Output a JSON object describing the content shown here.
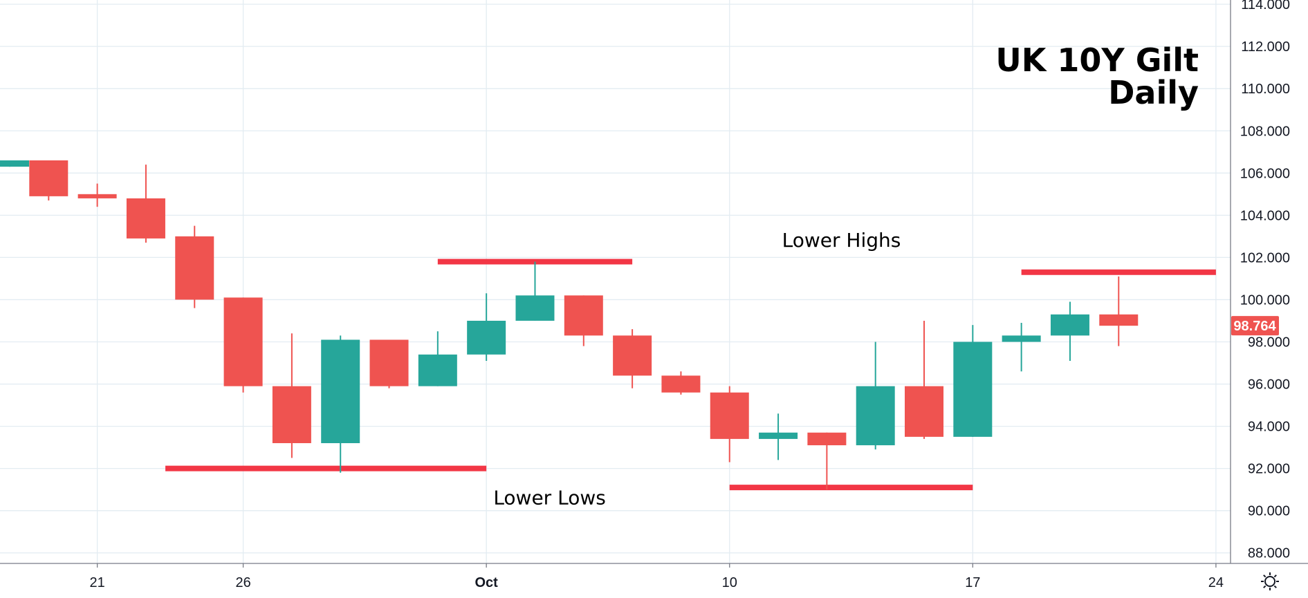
{
  "chart_data": {
    "type": "candlestick",
    "title_line1": "UK 10Y Gilt",
    "title_line2": "Daily",
    "x_ticks": [
      {
        "label": "21",
        "index": 1.8,
        "bold": false
      },
      {
        "label": "26",
        "index": 4.8,
        "bold": false
      },
      {
        "label": "Oct",
        "index": 9.8,
        "bold": true
      },
      {
        "label": "10",
        "index": 14.8,
        "bold": false
      },
      {
        "label": "17",
        "index": 19.8,
        "bold": false
      },
      {
        "label": "24",
        "index": 24.8,
        "bold": false
      }
    ],
    "y_ticks": [
      "88.000",
      "90.000",
      "92.000",
      "94.000",
      "96.000",
      "98.000",
      "100.000",
      "102.000",
      "104.000",
      "106.000",
      "108.000",
      "110.000",
      "112.000",
      "114.000"
    ],
    "ylim": [
      87.5,
      114.2
    ],
    "xlim": [
      -0.2,
      25.1
    ],
    "up_color": "#26a69a",
    "down_color": "#ef5350",
    "candles": [
      {
        "i": 0,
        "o": 106.3,
        "h": 106.6,
        "l": 106.3,
        "c": 106.6
      },
      {
        "i": 0.8,
        "o": 106.6,
        "h": 106.6,
        "l": 104.7,
        "c": 104.9
      },
      {
        "i": 1.8,
        "o": 105.0,
        "h": 105.5,
        "l": 104.4,
        "c": 104.8
      },
      {
        "i": 2.8,
        "o": 104.8,
        "h": 106.4,
        "l": 102.7,
        "c": 102.9
      },
      {
        "i": 3.8,
        "o": 103.0,
        "h": 103.5,
        "l": 99.6,
        "c": 100.0
      },
      {
        "i": 4.8,
        "o": 100.1,
        "h": 100.1,
        "l": 95.6,
        "c": 95.9
      },
      {
        "i": 5.8,
        "o": 95.9,
        "h": 98.4,
        "l": 92.5,
        "c": 93.2
      },
      {
        "i": 6.8,
        "o": 93.2,
        "h": 98.3,
        "l": 91.8,
        "c": 98.1
      },
      {
        "i": 7.8,
        "o": 98.1,
        "h": 98.1,
        "l": 95.8,
        "c": 95.9
      },
      {
        "i": 8.8,
        "o": 95.9,
        "h": 98.5,
        "l": 95.9,
        "c": 97.4
      },
      {
        "i": 9.8,
        "o": 97.4,
        "h": 100.3,
        "l": 97.1,
        "c": 99.0
      },
      {
        "i": 10.8,
        "o": 99.0,
        "h": 101.8,
        "l": 99.0,
        "c": 100.2
      },
      {
        "i": 11.8,
        "o": 100.2,
        "h": 100.2,
        "l": 97.8,
        "c": 98.3
      },
      {
        "i": 12.8,
        "o": 98.3,
        "h": 98.6,
        "l": 95.8,
        "c": 96.4
      },
      {
        "i": 13.8,
        "o": 96.4,
        "h": 96.6,
        "l": 95.5,
        "c": 95.6
      },
      {
        "i": 14.8,
        "o": 95.6,
        "h": 95.9,
        "l": 92.3,
        "c": 93.4
      },
      {
        "i": 15.8,
        "o": 93.4,
        "h": 94.6,
        "l": 92.4,
        "c": 93.7
      },
      {
        "i": 16.8,
        "o": 93.7,
        "h": 93.7,
        "l": 91.0,
        "c": 93.1
      },
      {
        "i": 17.8,
        "o": 93.1,
        "h": 98.0,
        "l": 92.9,
        "c": 95.9
      },
      {
        "i": 18.8,
        "o": 95.9,
        "h": 99.0,
        "l": 93.4,
        "c": 93.5
      },
      {
        "i": 19.8,
        "o": 93.5,
        "h": 98.8,
        "l": 93.5,
        "c": 98.0
      },
      {
        "i": 20.8,
        "o": 98.0,
        "h": 98.9,
        "l": 96.6,
        "c": 98.3
      },
      {
        "i": 21.8,
        "o": 98.3,
        "h": 99.9,
        "l": 97.1,
        "c": 99.3
      },
      {
        "i": 22.8,
        "o": 99.3,
        "h": 101.1,
        "l": 97.8,
        "c": 98.764
      }
    ],
    "horizontal_lines": [
      {
        "value": 92.0,
        "from": 3.2,
        "to": 9.8
      },
      {
        "value": 101.8,
        "from": 8.8,
        "to": 12.8
      },
      {
        "value": 91.1,
        "from": 14.8,
        "to": 19.8
      },
      {
        "value": 101.3,
        "from": 20.8,
        "to": 24.8
      }
    ],
    "annotations": [
      {
        "text": "Lower Highs",
        "x": 17.1,
        "y": 102.5
      },
      {
        "text": "Lower Lows",
        "x": 11.1,
        "y": 90.3
      }
    ],
    "last_price": "98.764"
  },
  "icons": {
    "settings": "gear-icon"
  }
}
